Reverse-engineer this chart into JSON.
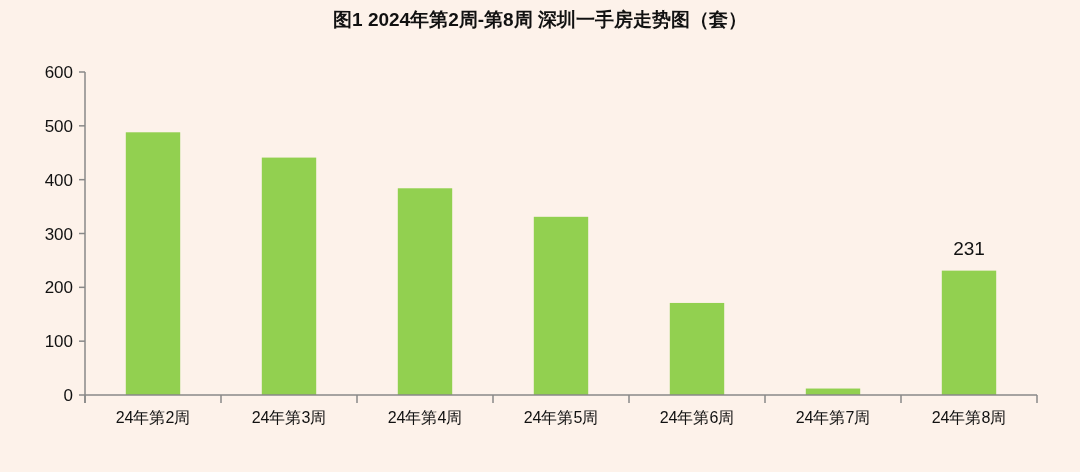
{
  "chart_data": {
    "type": "bar",
    "title": "图1  2024年第2周-第8周 深圳一手房走势图（套）",
    "categories": [
      "24年第2周",
      "24年第3周",
      "24年第4周",
      "24年第5周",
      "24年第6周",
      "24年第7周",
      "24年第8周"
    ],
    "series": [
      {
        "color": "#92d050",
        "values": [
          488,
          441,
          384,
          331,
          171,
          12,
          231
        ],
        "value_labels": [
          null,
          null,
          null,
          null,
          null,
          null,
          "231"
        ]
      }
    ],
    "ylim": [
      0,
      600
    ],
    "yticks": [
      0,
      100,
      200,
      300,
      400,
      500,
      600
    ]
  }
}
